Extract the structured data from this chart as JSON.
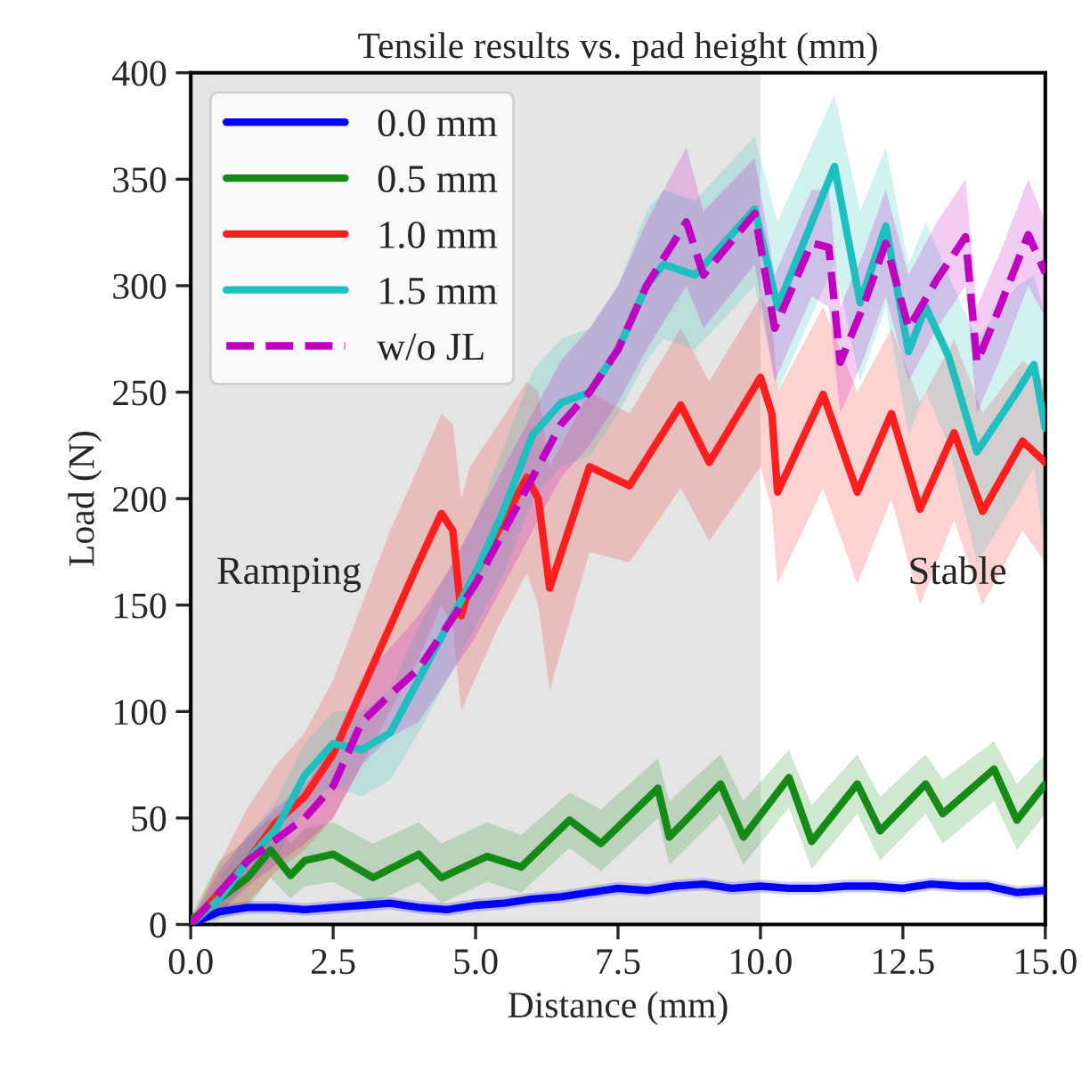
{
  "chart_data": {
    "type": "line",
    "title": "Tensile results vs. pad height (mm)",
    "xlabel": "Distance (mm)",
    "ylabel": "Load (N)",
    "xlim": [
      0,
      15
    ],
    "ylim": [
      0,
      400
    ],
    "xticks": [
      {
        "value": 0,
        "label": "0.0"
      },
      {
        "value": 2.5,
        "label": "2.5"
      },
      {
        "value": 5,
        "label": "5.0"
      },
      {
        "value": 7.5,
        "label": "7.5"
      },
      {
        "value": 10,
        "label": "10.0"
      },
      {
        "value": 12.5,
        "label": "12.5"
      },
      {
        "value": 15,
        "label": "15.0"
      }
    ],
    "yticks": [
      0,
      50,
      100,
      150,
      200,
      250,
      300,
      350,
      400
    ],
    "grid": false,
    "legend": "top left",
    "bands": [
      {
        "axis": "x",
        "from": 0,
        "to": 10,
        "color": "#e5e5e5"
      }
    ],
    "annotations": [
      "Ramping",
      "Stable"
    ],
    "series": [
      {
        "name": "0.0 mm",
        "color": "#0000ff",
        "line_style": "solid",
        "x": [
          0,
          0.5,
          1,
          1.5,
          2,
          2.5,
          3,
          3.5,
          4,
          4.5,
          5,
          5.5,
          6,
          6.5,
          7,
          7.5,
          8,
          8.5,
          9,
          9.5,
          10,
          10.5,
          11,
          11.5,
          12,
          12.5,
          13,
          13.5,
          14,
          14.5,
          15
        ],
        "values": [
          0,
          6,
          8,
          8,
          7,
          8,
          9,
          10,
          8,
          7,
          9,
          10,
          12,
          13,
          15,
          17,
          16,
          18,
          19,
          17,
          18,
          17,
          17,
          18,
          18,
          17,
          19,
          18,
          18,
          15,
          16
        ],
        "lower": [
          0,
          3,
          5,
          5,
          4,
          5,
          6,
          7,
          5,
          4,
          6,
          7,
          9,
          10,
          12,
          14,
          13,
          15,
          16,
          14,
          15,
          14,
          14,
          15,
          15,
          14,
          16,
          15,
          15,
          12,
          13
        ],
        "upper": [
          2,
          9,
          11,
          11,
          10,
          11,
          12,
          13,
          11,
          10,
          12,
          13,
          15,
          16,
          18,
          20,
          19,
          21,
          22,
          20,
          21,
          20,
          20,
          21,
          21,
          20,
          22,
          21,
          21,
          18,
          19
        ]
      },
      {
        "name": "0.5 mm",
        "color": "#168a16",
        "line_style": "solid",
        "x": [
          0,
          0.5,
          1.0,
          1.4,
          1.75,
          2.0,
          2.5,
          3.2,
          4.0,
          4.4,
          5.2,
          5.8,
          6.65,
          7.2,
          8.2,
          8.4,
          9.3,
          9.7,
          10.5,
          10.9,
          11.7,
          12.1,
          12.9,
          13.2,
          14.1,
          14.5,
          15
        ],
        "values": [
          2,
          12,
          22,
          35,
          23,
          30,
          33,
          22,
          33,
          22,
          32,
          27,
          49,
          38,
          64,
          41,
          66,
          41,
          69,
          39,
          66,
          44,
          66,
          52,
          73,
          49,
          66
        ],
        "lower": [
          0,
          2,
          8,
          22,
          12,
          18,
          20,
          10,
          20,
          10,
          20,
          15,
          36,
          25,
          50,
          28,
          52,
          28,
          55,
          26,
          52,
          30,
          52,
          38,
          58,
          35,
          52
        ],
        "upper": [
          4,
          30,
          40,
          50,
          38,
          45,
          48,
          38,
          48,
          38,
          48,
          42,
          62,
          54,
          78,
          58,
          80,
          58,
          82,
          56,
          80,
          60,
          80,
          68,
          86,
          66,
          80
        ]
      },
      {
        "name": "1.0 mm",
        "color": "#ff1f1f",
        "line_style": "solid",
        "x": [
          0,
          1,
          1.5,
          2,
          2.5,
          3,
          3.5,
          4,
          4.4,
          4.6,
          4.75,
          4.9,
          5.4,
          5.9,
          6.1,
          6.3,
          7.0,
          7.7,
          8.6,
          9.1,
          10.0,
          10.2,
          10.3,
          11.1,
          11.7,
          12.3,
          12.8,
          13.4,
          13.9,
          14.6,
          15
        ],
        "values": [
          0,
          30,
          48,
          60,
          80,
          110,
          140,
          170,
          193,
          185,
          145,
          160,
          185,
          210,
          200,
          158,
          215,
          206,
          244,
          217,
          257,
          240,
          203,
          249,
          203,
          240,
          195,
          231,
          194,
          227,
          217
        ],
        "lower": [
          0,
          10,
          25,
          35,
          50,
          75,
          100,
          125,
          150,
          140,
          100,
          110,
          140,
          165,
          150,
          110,
          175,
          170,
          205,
          180,
          215,
          195,
          160,
          205,
          160,
          200,
          150,
          190,
          150,
          185,
          170
        ],
        "upper": [
          2,
          55,
          75,
          90,
          115,
          150,
          185,
          215,
          240,
          235,
          200,
          215,
          235,
          255,
          250,
          215,
          250,
          240,
          280,
          255,
          295,
          285,
          250,
          290,
          250,
          280,
          245,
          275,
          240,
          265,
          255
        ]
      },
      {
        "name": "1.5 mm",
        "color": "#1fbfbf",
        "line_style": "solid",
        "x": [
          0,
          0.5,
          1,
          1.5,
          2,
          2.5,
          3,
          3.5,
          4,
          4.5,
          5,
          5.5,
          6,
          6.5,
          7,
          7.5,
          8,
          8.3,
          8.85,
          9.9,
          10.3,
          11.3,
          11.75,
          12.2,
          12.6,
          12.9,
          13.3,
          13.8,
          14.5,
          14.8,
          15
        ],
        "values": [
          0,
          12,
          30,
          45,
          70,
          85,
          82,
          90,
          115,
          140,
          165,
          195,
          230,
          245,
          250,
          270,
          300,
          310,
          305,
          336,
          290,
          356,
          292,
          328,
          269,
          290,
          267,
          222,
          250,
          263,
          233
        ],
        "lower": [
          0,
          5,
          20,
          32,
          55,
          65,
          60,
          68,
          90,
          115,
          140,
          165,
          200,
          215,
          220,
          240,
          265,
          275,
          270,
          300,
          250,
          310,
          255,
          290,
          230,
          250,
          225,
          170,
          200,
          215,
          175
        ],
        "upper": [
          2,
          20,
          42,
          58,
          85,
          100,
          100,
          110,
          140,
          165,
          190,
          225,
          260,
          275,
          280,
          300,
          335,
          345,
          340,
          370,
          330,
          390,
          335,
          365,
          310,
          330,
          305,
          275,
          300,
          305,
          285
        ]
      },
      {
        "name": "w/o JL",
        "color": "#bf00bf",
        "line_style": "dashed",
        "x": [
          0,
          0.5,
          1,
          1.5,
          2,
          2.5,
          3,
          3.5,
          4,
          4.5,
          5,
          5.5,
          6,
          6.5,
          7,
          7.5,
          8,
          8.7,
          9.0,
          9.9,
          10.25,
          10.9,
          11.2,
          11.4,
          11.8,
          12.2,
          12.6,
          13.1,
          13.6,
          13.8,
          14.2,
          14.7,
          15
        ],
        "values": [
          0,
          15,
          30,
          40,
          50,
          65,
          95,
          108,
          120,
          140,
          160,
          185,
          210,
          235,
          250,
          270,
          300,
          330,
          305,
          334,
          280,
          320,
          318,
          264,
          290,
          320,
          280,
          303,
          323,
          264,
          290,
          324,
          306
        ],
        "lower": [
          0,
          5,
          18,
          28,
          38,
          50,
          75,
          88,
          95,
          115,
          135,
          160,
          185,
          210,
          225,
          245,
          270,
          300,
          280,
          310,
          255,
          295,
          290,
          240,
          265,
          295,
          255,
          280,
          300,
          240,
          265,
          300,
          285
        ],
        "upper": [
          2,
          25,
          42,
          55,
          65,
          85,
          115,
          130,
          145,
          165,
          190,
          215,
          240,
          265,
          280,
          300,
          330,
          365,
          335,
          360,
          305,
          345,
          345,
          290,
          315,
          345,
          305,
          330,
          350,
          290,
          315,
          350,
          330
        ]
      }
    ]
  }
}
